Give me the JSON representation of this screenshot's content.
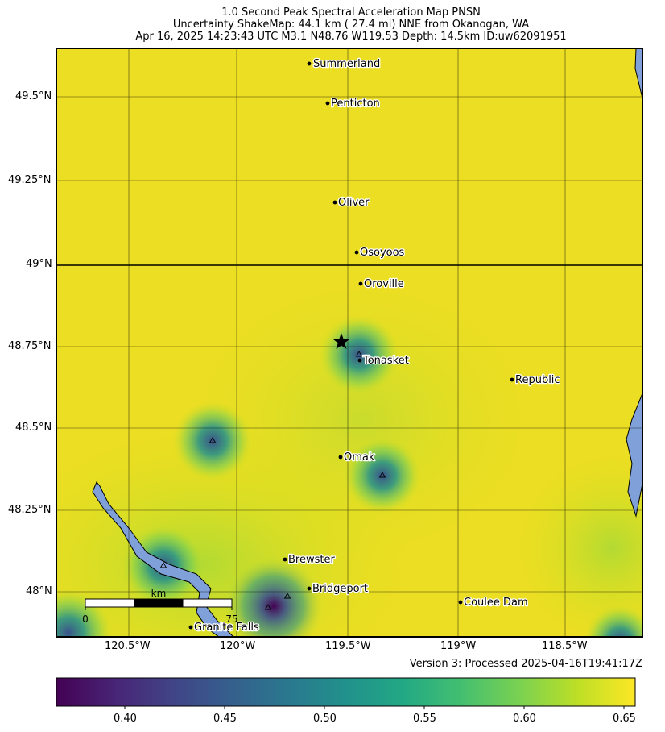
{
  "title": {
    "line1": "1.0 Second Peak Spectral Acceleration Map PNSN",
    "line2": "Uncertainty ShakeMap: 44.1 km (  27.4 mi) NNE from Okanogan, WA",
    "line3": "Apr 16, 2025 14:23:43 UTC M3.1 N48.76 W119.53 Depth: 14.5km ID:uw62091951"
  },
  "map": {
    "lat_ticks": [
      "49.5°N",
      "49.25°N",
      "49°N",
      "48.75°N",
      "48.5°N",
      "48.25°N",
      "48°N"
    ],
    "lon_ticks": [
      "120.5°W",
      "120°W",
      "119.5°W",
      "119°W",
      "118.5°W"
    ],
    "cities": [
      {
        "name": "Summerland"
      },
      {
        "name": "Penticton"
      },
      {
        "name": "Oliver"
      },
      {
        "name": "Osoyoos"
      },
      {
        "name": "Oroville"
      },
      {
        "name": "Tonasket"
      },
      {
        "name": "Republic"
      },
      {
        "name": "Omak"
      },
      {
        "name": "Brewster"
      },
      {
        "name": "Bridgeport"
      },
      {
        "name": "Coulee Dam"
      },
      {
        "name": "Granite Falls"
      }
    ],
    "scale_bar": {
      "unit": "km",
      "start": "0",
      "end": "75"
    },
    "colors": {
      "water": "#7fa0d8",
      "high_value": "#f0e424",
      "low_value": "#440154"
    }
  },
  "version_text": "Version 3: Processed 2025-04-16T19:41:17Z",
  "colorbar": {
    "ticks": [
      "0.40",
      "0.45",
      "0.50",
      "0.55",
      "0.60",
      "0.65"
    ],
    "range": [
      0.365,
      0.655
    ],
    "colormap": "viridis"
  }
}
